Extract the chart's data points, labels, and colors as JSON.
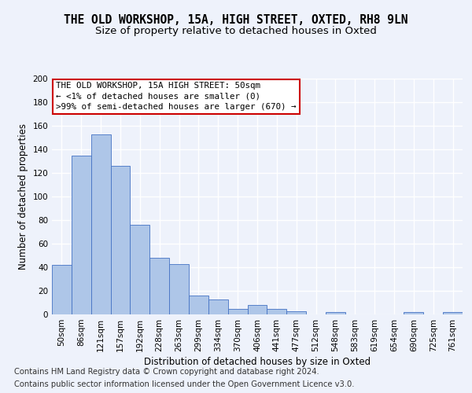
{
  "title": "THE OLD WORKSHOP, 15A, HIGH STREET, OXTED, RH8 9LN",
  "subtitle": "Size of property relative to detached houses in Oxted",
  "xlabel": "Distribution of detached houses by size in Oxted",
  "ylabel": "Number of detached properties",
  "categories": [
    "50sqm",
    "86sqm",
    "121sqm",
    "157sqm",
    "192sqm",
    "228sqm",
    "263sqm",
    "299sqm",
    "334sqm",
    "370sqm",
    "406sqm",
    "441sqm",
    "477sqm",
    "512sqm",
    "548sqm",
    "583sqm",
    "619sqm",
    "654sqm",
    "690sqm",
    "725sqm",
    "761sqm"
  ],
  "values": [
    42,
    135,
    153,
    126,
    76,
    48,
    43,
    16,
    13,
    5,
    8,
    5,
    3,
    0,
    2,
    0,
    0,
    0,
    2,
    0,
    2
  ],
  "bar_color": "#aec6e8",
  "bar_edge_color": "#4472c4",
  "annotation_line1": "THE OLD WORKSHOP, 15A HIGH STREET: 50sqm",
  "annotation_line2": "← <1% of detached houses are smaller (0)",
  "annotation_line3": ">99% of semi-detached houses are larger (670) →",
  "annotation_box_color": "#ffffff",
  "annotation_box_edge_color": "#cc0000",
  "ylim": [
    0,
    200
  ],
  "yticks": [
    0,
    20,
    40,
    60,
    80,
    100,
    120,
    140,
    160,
    180,
    200
  ],
  "footnote1": "Contains HM Land Registry data © Crown copyright and database right 2024.",
  "footnote2": "Contains public sector information licensed under the Open Government Licence v3.0.",
  "background_color": "#eef2fb",
  "grid_color": "#ffffff",
  "title_fontsize": 10.5,
  "subtitle_fontsize": 9.5,
  "axis_label_fontsize": 8.5,
  "tick_fontsize": 7.5,
  "annotation_fontsize": 7.8,
  "footnote_fontsize": 7.2
}
